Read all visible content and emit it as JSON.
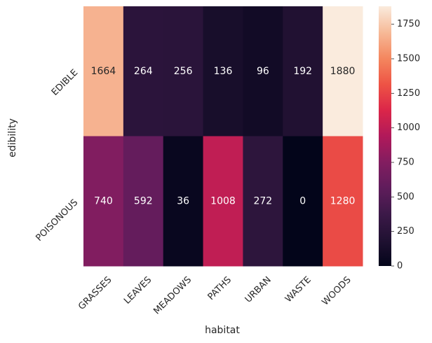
{
  "chart_data": {
    "type": "heatmap",
    "xlabel": "habitat",
    "ylabel": "edibility",
    "x_categories": [
      "GRASSES",
      "LEAVES",
      "MEADOWS",
      "PATHS",
      "URBAN",
      "WASTE",
      "WOODS"
    ],
    "y_categories": [
      "EDIBLE",
      "POISONOUS"
    ],
    "values": [
      [
        1664,
        264,
        256,
        136,
        96,
        192,
        1880
      ],
      [
        740,
        592,
        36,
        1008,
        272,
        0,
        1280
      ]
    ],
    "colorbar": {
      "range": [
        0,
        1880
      ],
      "ticks": [
        0,
        250,
        500,
        750,
        1000,
        1250,
        1500,
        1750
      ],
      "colormap": "rocket"
    },
    "annotations": true
  }
}
